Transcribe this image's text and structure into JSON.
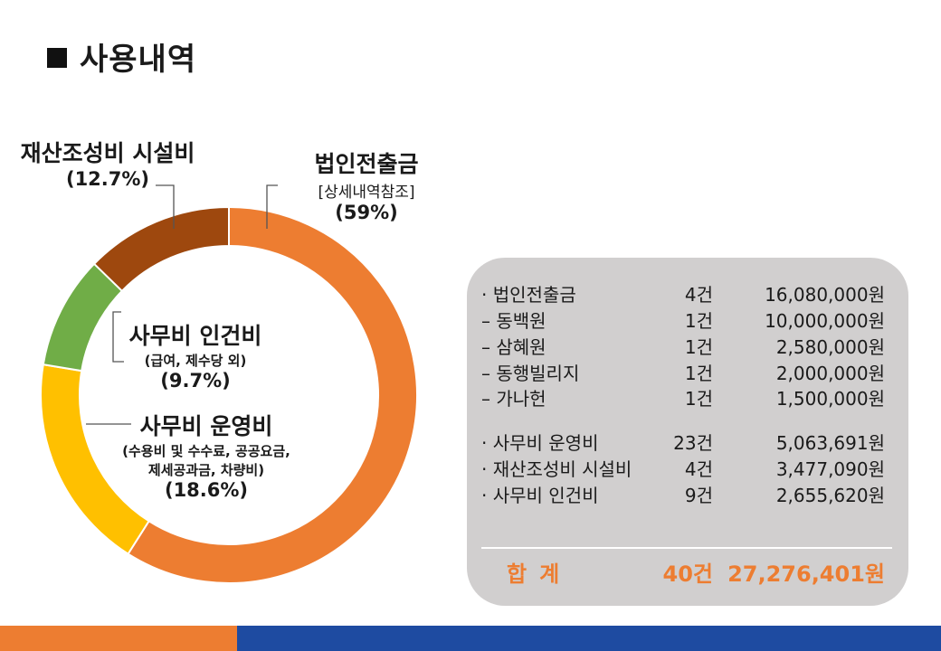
{
  "page": {
    "title": "사용내역",
    "title_marker": "■"
  },
  "chart_data": {
    "type": "pie",
    "variant": "donut",
    "slices": [
      {
        "label": "법인전출금",
        "note": "[상세내역참조]",
        "percent_label": "(59%)",
        "value": 59.0,
        "color": "#ed7d31"
      },
      {
        "label": "사무비 운영비",
        "note": "(수용비 및  수수료, 공공요금,",
        "note2": "제세공과금, 차량비)",
        "percent_label": "(18.6%)",
        "value": 18.6,
        "color": "#ffc000"
      },
      {
        "label": "사무비 인건비",
        "note": "(급여, 제수당 외)",
        "percent_label": "(9.7%)",
        "value": 9.7,
        "color": "#70ad47"
      },
      {
        "label": "재산조성비 시설비",
        "note": "",
        "percent_label": "(12.7%)",
        "value": 12.7,
        "color": "#9e480e"
      }
    ]
  },
  "summary": {
    "rows": [
      {
        "name": "· 법인전출금",
        "count": "4건",
        "amount": "16,080,000원"
      },
      {
        "name": "– 동백원",
        "count": "1건",
        "amount": "10,000,000원"
      },
      {
        "name": "– 삼혜원",
        "count": "1건",
        "amount": "2,580,000원"
      },
      {
        "name": "– 동행빌리지",
        "count": "1건",
        "amount": "2,000,000원"
      },
      {
        "name": "– 가나헌",
        "count": "1건",
        "amount": "1,500,000원"
      },
      {
        "name": "· 사무비 운영비",
        "count": "23건",
        "amount": "5,063,691원"
      },
      {
        "name": "· 재산조성비 시설비",
        "count": "4건",
        "amount": "3,477,090원"
      },
      {
        "name": "· 사무비 인건비",
        "count": "9건",
        "amount": "2,655,620원"
      }
    ],
    "total": {
      "name": "합계",
      "count": "40건",
      "amount": "27,276,401원"
    }
  },
  "colors": {
    "accent_orange": "#ed7d31",
    "footer_blue": "#1e4ba1",
    "box_gray": "#d1cfcf"
  }
}
